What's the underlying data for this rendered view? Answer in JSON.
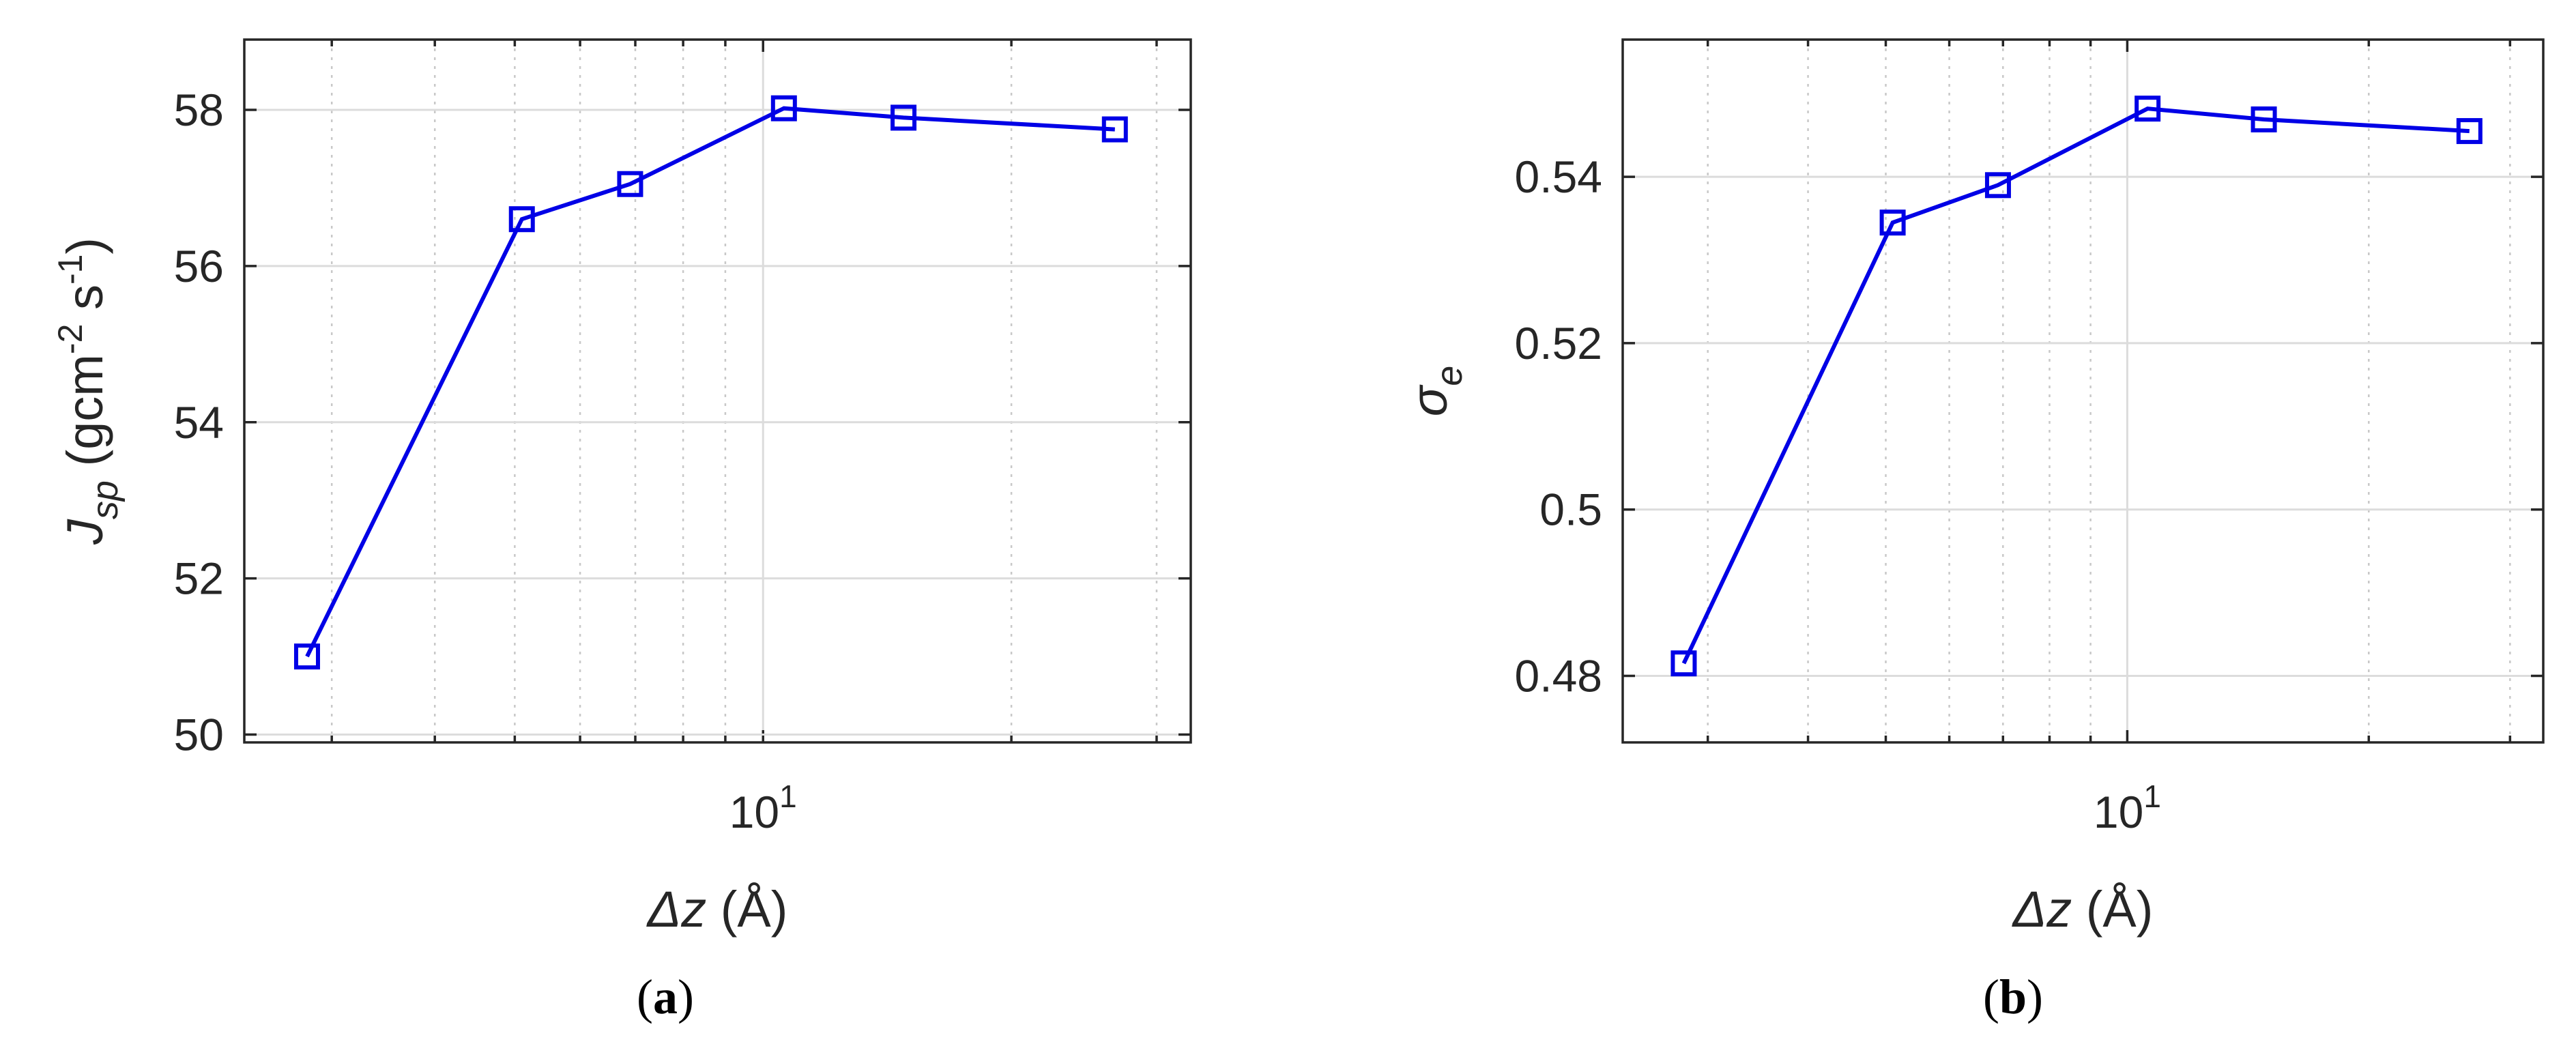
{
  "chart_data": [
    {
      "type": "line",
      "panel_label": "a",
      "x_scale": "log",
      "grid": true,
      "xlabel": {
        "main": "Δz",
        "unit": " (Å)"
      },
      "ylabel": {
        "main": "J",
        "sub": "sp",
        "rest": " (gcm",
        "exp1": "-2",
        "mid": " s",
        "exp2": "-1",
        "end": ")"
      },
      "xlim": [
        2.35,
        33
      ],
      "ylim": [
        49.9,
        58.9
      ],
      "x_ticks": [
        {
          "value": 10,
          "base": "10",
          "exp": "1"
        }
      ],
      "y_ticks": [
        50,
        52,
        54,
        56,
        58
      ],
      "y_tick_labels": [
        "50",
        "52",
        "54",
        "56",
        "58"
      ],
      "series": [
        {
          "color": "#0000e6",
          "marker": "square",
          "x": [
            2.8,
            5.1,
            6.9,
            10.6,
            14.8,
            26.7
          ],
          "y": [
            51.0,
            56.6,
            57.05,
            58.02,
            57.9,
            57.75
          ]
        }
      ]
    },
    {
      "type": "line",
      "panel_label": "b",
      "x_scale": "log",
      "grid": true,
      "xlabel": {
        "main": "Δz",
        "unit": " (Å)"
      },
      "ylabel": {
        "main": "σ",
        "sub": "e"
      },
      "xlim": [
        2.35,
        33
      ],
      "ylim": [
        0.472,
        0.5565
      ],
      "x_ticks": [
        {
          "value": 10,
          "base": "10",
          "exp": "1"
        }
      ],
      "y_ticks": [
        0.48,
        0.5,
        0.52,
        0.54
      ],
      "y_tick_labels": [
        "0.48",
        "0.5",
        "0.52",
        "0.54"
      ],
      "series": [
        {
          "color": "#0000e6",
          "marker": "square",
          "x": [
            2.8,
            5.1,
            6.9,
            10.6,
            14.8,
            26.7
          ],
          "y": [
            0.4815,
            0.5345,
            0.539,
            0.5482,
            0.5469,
            0.5455
          ]
        }
      ]
    }
  ]
}
